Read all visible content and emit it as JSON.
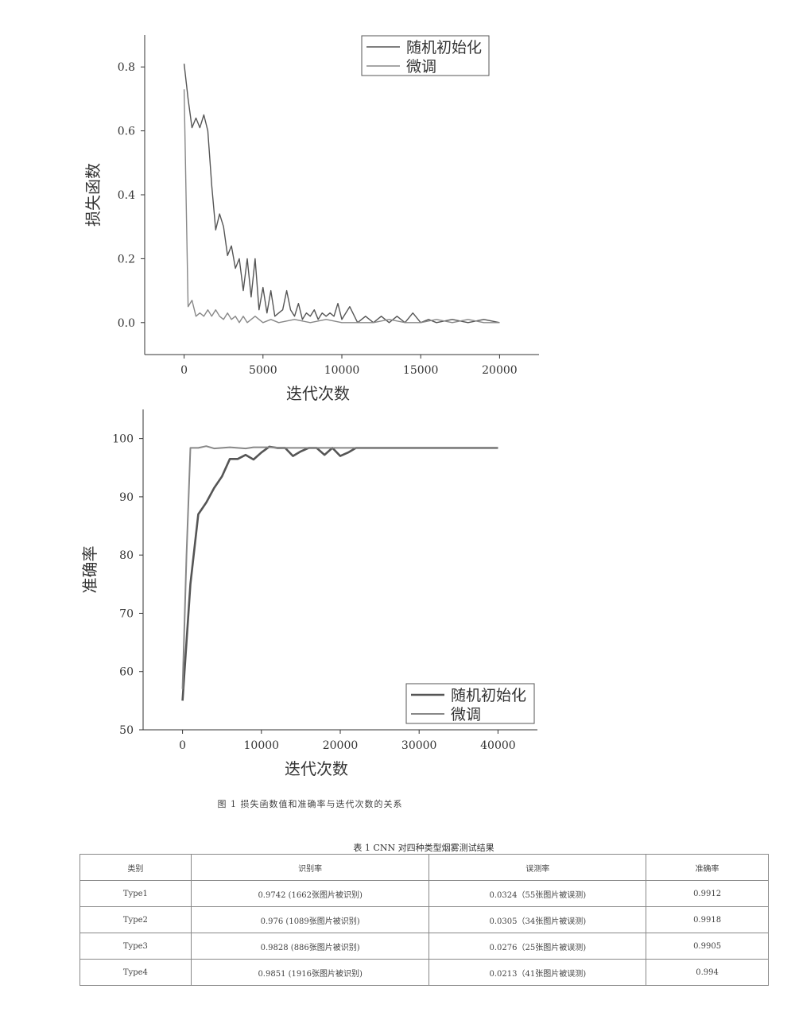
{
  "chart_data": [
    {
      "type": "line",
      "title": "",
      "xlabel": "迭代次数",
      "ylabel": "损失函数",
      "xlim": [
        -2500,
        22500
      ],
      "ylim": [
        -0.1,
        0.9
      ],
      "xticks": [
        0,
        5000,
        10000,
        15000,
        20000
      ],
      "yticks": [
        0.0,
        0.2,
        0.4,
        0.6,
        0.8
      ],
      "xtick_labels": [
        "0",
        "5000",
        "10000",
        "15000",
        "20000"
      ],
      "ytick_labels": [
        "0.0",
        "0.2",
        "0.4",
        "0.6",
        "0.8"
      ],
      "grid": false,
      "legend_position": "top-right",
      "series": [
        {
          "name": "随机初始化",
          "color": "#555555",
          "x": [
            0,
            250,
            500,
            750,
            1000,
            1250,
            1500,
            1750,
            2000,
            2250,
            2500,
            2750,
            3000,
            3250,
            3500,
            3750,
            4000,
            4250,
            4500,
            4750,
            5000,
            5250,
            5500,
            5750,
            6000,
            6250,
            6500,
            6750,
            7000,
            7250,
            7500,
            7750,
            8000,
            8250,
            8500,
            8750,
            9000,
            9250,
            9500,
            9750,
            10000,
            10500,
            11000,
            11500,
            12000,
            12500,
            13000,
            13500,
            14000,
            14500,
            15000,
            15500,
            16000,
            17000,
            18000,
            19000,
            20000
          ],
          "values": [
            0.81,
            0.7,
            0.61,
            0.64,
            0.61,
            0.65,
            0.6,
            0.43,
            0.29,
            0.34,
            0.3,
            0.21,
            0.24,
            0.17,
            0.2,
            0.1,
            0.2,
            0.08,
            0.2,
            0.04,
            0.11,
            0.03,
            0.1,
            0.02,
            0.03,
            0.04,
            0.1,
            0.04,
            0.02,
            0.06,
            0.01,
            0.03,
            0.02,
            0.04,
            0.01,
            0.03,
            0.02,
            0.03,
            0.02,
            0.06,
            0.01,
            0.05,
            0.0,
            0.02,
            0.0,
            0.02,
            0.0,
            0.02,
            0.0,
            0.03,
            0.0,
            0.01,
            0.0,
            0.01,
            0.0,
            0.01,
            0.0
          ]
        },
        {
          "name": "微调",
          "color": "#888888",
          "x": [
            0,
            250,
            500,
            750,
            1000,
            1250,
            1500,
            1750,
            2000,
            2250,
            2500,
            2750,
            3000,
            3250,
            3500,
            3750,
            4000,
            4500,
            5000,
            5500,
            6000,
            7000,
            8000,
            9000,
            10000,
            11000,
            12000,
            13000,
            14000,
            15000,
            16000,
            17000,
            18000,
            19000,
            20000
          ],
          "values": [
            0.73,
            0.05,
            0.07,
            0.02,
            0.03,
            0.02,
            0.04,
            0.02,
            0.04,
            0.02,
            0.01,
            0.03,
            0.01,
            0.02,
            0.0,
            0.02,
            0.0,
            0.02,
            0.0,
            0.01,
            0.0,
            0.01,
            0.0,
            0.01,
            0.0,
            0.0,
            0.0,
            0.01,
            0.0,
            0.0,
            0.01,
            0.0,
            0.01,
            0.0,
            0.0
          ]
        }
      ]
    },
    {
      "type": "line",
      "title": "",
      "xlabel": "迭代次数",
      "ylabel": "准确率",
      "xlim": [
        -5000,
        45000
      ],
      "ylim": [
        50,
        105
      ],
      "xticks": [
        0,
        10000,
        20000,
        30000,
        40000
      ],
      "yticks": [
        50,
        60,
        70,
        80,
        90,
        100
      ],
      "xtick_labels": [
        "0",
        "10000",
        "20000",
        "30000",
        "40000"
      ],
      "ytick_labels": [
        "50",
        "60",
        "70",
        "80",
        "90",
        "100"
      ],
      "grid": false,
      "legend_position": "bottom-right",
      "series": [
        {
          "name": "随机初始化",
          "color": "#555555",
          "x": [
            0,
            1000,
            2000,
            3000,
            4000,
            5000,
            6000,
            7000,
            8000,
            9000,
            10000,
            11000,
            12000,
            13000,
            14000,
            15000,
            16000,
            17000,
            18000,
            19000,
            20000,
            21000,
            22000,
            30000,
            40000
          ],
          "values": [
            55,
            75,
            87,
            89,
            91.5,
            93.5,
            96.5,
            96.5,
            97.2,
            96.4,
            97.6,
            98.6,
            98.4,
            98.4,
            97.0,
            97.8,
            98.4,
            98.4,
            97.2,
            98.4,
            97.0,
            97.6,
            98.4,
            98.4,
            98.4
          ]
        },
        {
          "name": "微调",
          "color": "#888888",
          "x": [
            0,
            500,
            1000,
            2000,
            3000,
            4000,
            6000,
            8000,
            9000,
            11000,
            13000,
            15000,
            20000,
            30000,
            40000
          ],
          "values": [
            57,
            80,
            98.4,
            98.4,
            98.7,
            98.3,
            98.5,
            98.3,
            98.5,
            98.5,
            98.4,
            98.4,
            98.4,
            98.4,
            98.4
          ]
        }
      ]
    }
  ],
  "figure_caption": "图 1 损失函数值和准确率与迭代次数的关系",
  "table": {
    "title": "表 1 CNN 对四种类型烟雾测试结果",
    "headers": [
      "类别",
      "识别率",
      "误测率",
      "准确率"
    ],
    "rows": [
      [
        "Type1",
        "0.9742 (1662张图片被识别)",
        "0.0324（55张图片被误测)",
        "0.9912"
      ],
      [
        "Type2",
        "0.976 (1089张图片被识别)",
        "0.0305（34张图片被误测)",
        "0.9918"
      ],
      [
        "Type3",
        "0.9828 (886张图片被识别)",
        "0.0276（25张图片被误测)",
        "0.9905"
      ],
      [
        "Type4",
        "0.9851 (1916张图片被识别)",
        "0.0213（41张图片被误测)",
        "0.994"
      ]
    ]
  }
}
